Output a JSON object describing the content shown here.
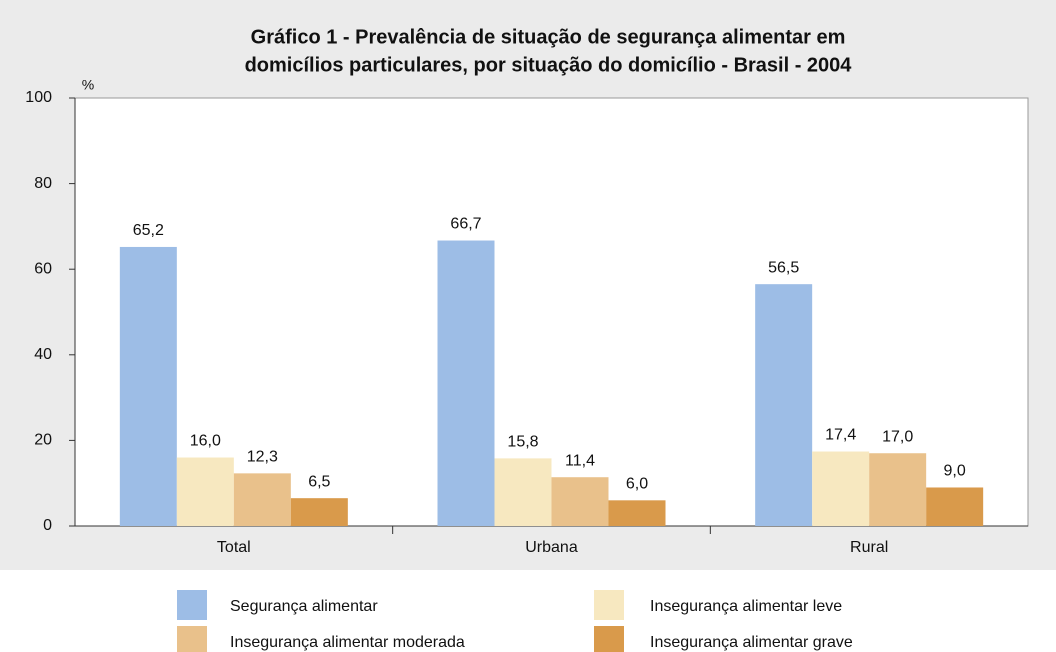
{
  "chart_data": {
    "type": "bar",
    "title": "Gráfico 1 - Prevalência de situação de segurança alimentar em",
    "subtitle": "domicílios particulares, por situação do domicílio - Brasil - 2004",
    "y_axis_label": "%",
    "categories": [
      "Total",
      "Urbana",
      "Rural"
    ],
    "series": [
      {
        "name": "Segurança alimentar",
        "color": "#9dbde6",
        "values": [
          65.2,
          66.7,
          56.5
        ],
        "value_labels": [
          "65,2",
          "66,7",
          "56,5"
        ]
      },
      {
        "name": "Insegurança alimentar leve",
        "color": "#f7e8c0",
        "values": [
          16.0,
          15.8,
          17.4
        ],
        "value_labels": [
          "16,0",
          "15,8",
          "17,4"
        ]
      },
      {
        "name": "Insegurança alimentar moderada",
        "color": "#e9c18b",
        "values": [
          12.3,
          11.4,
          17.0
        ],
        "value_labels": [
          "12,3",
          "11,4",
          "17,0"
        ]
      },
      {
        "name": "Insegurança alimentar grave",
        "color": "#d99a4b",
        "values": [
          6.5,
          6.0,
          9.0
        ],
        "value_labels": [
          "6,5",
          "6,0",
          "9,0"
        ]
      }
    ],
    "ylim": [
      0,
      100
    ],
    "yticks": [
      0,
      20,
      40,
      60,
      80,
      100
    ],
    "grid": false
  }
}
